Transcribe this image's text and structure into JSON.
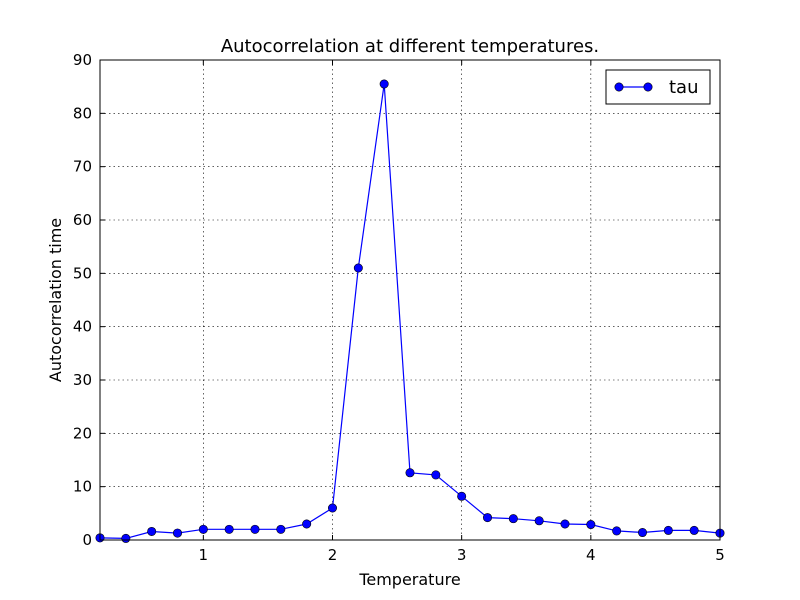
{
  "chart_data": {
    "type": "line",
    "title": "Autocorrelation at different temperatures.",
    "xlabel": "Temperature",
    "ylabel": "Autocorrelation time",
    "xlim": [
      0.2,
      5.0
    ],
    "ylim": [
      0,
      90
    ],
    "xticks": [
      1,
      2,
      3,
      4,
      5
    ],
    "yticks": [
      0,
      10,
      20,
      30,
      40,
      50,
      60,
      70,
      80,
      90
    ],
    "grid": true,
    "legend_position": "top-right",
    "series": [
      {
        "name": "tau",
        "color": "#0000ff",
        "marker": "circle",
        "x": [
          0.2,
          0.4,
          0.6,
          0.8,
          1.0,
          1.2,
          1.4,
          1.6,
          1.8,
          2.0,
          2.2,
          2.4,
          2.6,
          2.8,
          3.0,
          3.2,
          3.4,
          3.6,
          3.8,
          4.0,
          4.2,
          4.4,
          4.6,
          4.8,
          5.0
        ],
        "y": [
          0.4,
          0.3,
          1.6,
          1.3,
          2.0,
          2.0,
          2.0,
          2.0,
          3.0,
          6.0,
          51.0,
          85.5,
          12.6,
          12.2,
          8.2,
          4.2,
          4.0,
          3.6,
          3.0,
          2.9,
          1.7,
          1.4,
          1.8,
          1.8,
          1.3
        ]
      }
    ]
  }
}
